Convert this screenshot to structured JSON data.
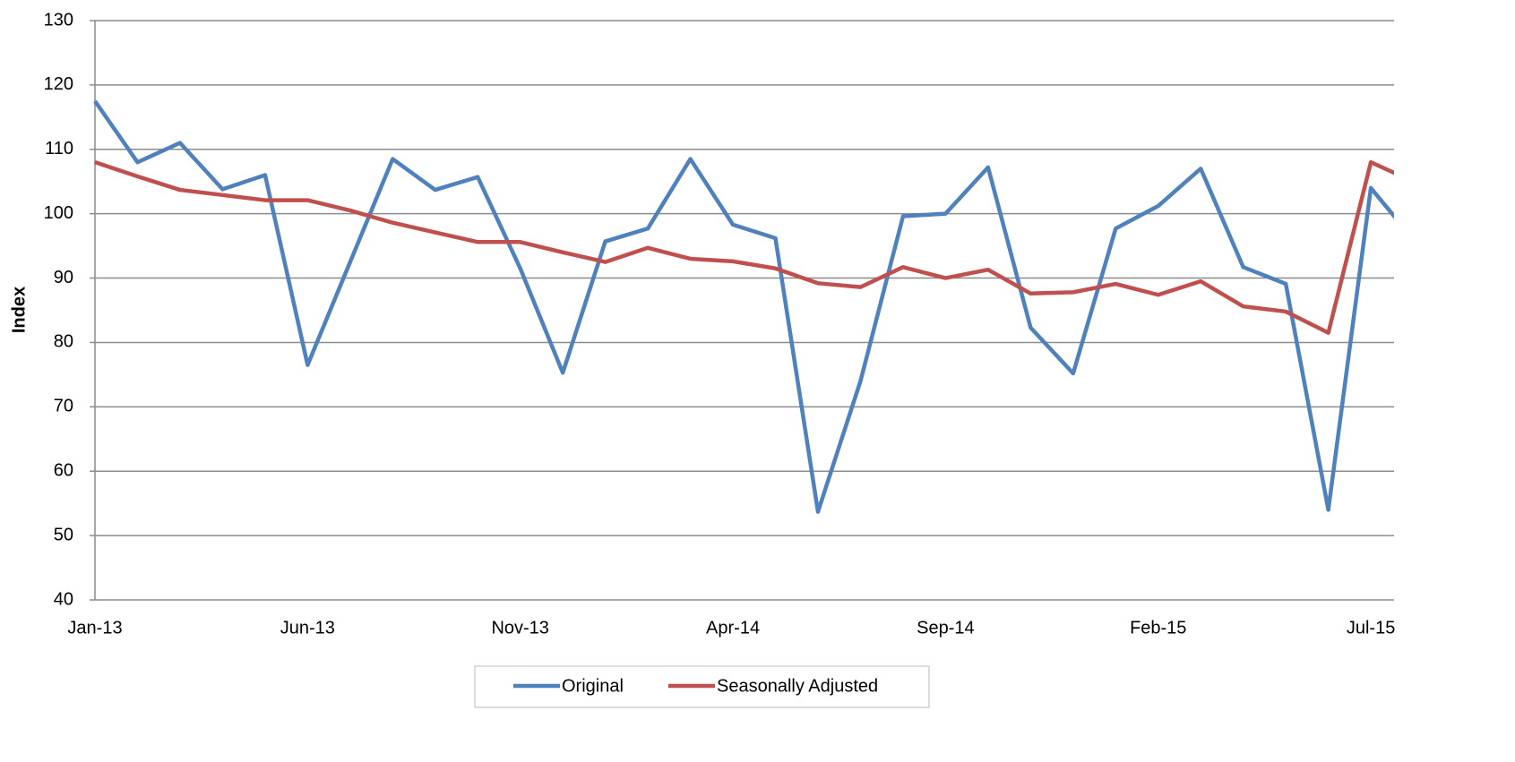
{
  "chart_data": {
    "type": "line",
    "ylabel": "Index",
    "categories": [
      "Jan-13",
      null,
      null,
      null,
      null,
      "Jun-13",
      null,
      null,
      null,
      null,
      "Nov-13",
      null,
      null,
      null,
      null,
      "Apr-14",
      null,
      null,
      null,
      null,
      "Sep-14",
      null,
      null,
      null,
      null,
      "Feb-15",
      null,
      null,
      null,
      null,
      "Jul-15",
      null
    ],
    "series": [
      {
        "name": "Original",
        "color": "#4f81bd",
        "values": [
          117.5,
          108,
          111,
          103.8,
          106,
          76.5,
          92.5,
          108.5,
          103.7,
          105.7,
          91.5,
          75.3,
          95.7,
          97.7,
          108.5,
          98.3,
          96.2,
          53.7,
          74,
          99.6,
          100,
          107.2,
          82.3,
          75.2,
          97.7,
          101.2,
          107,
          91.7,
          89.1,
          54,
          104,
          96
        ]
      },
      {
        "name": "Seasonally Adjusted",
        "color": "#c0504d",
        "values": [
          108,
          105.8,
          103.7,
          102.9,
          102.1,
          102.1,
          100.5,
          98.6,
          97.1,
          95.6,
          95.6,
          94,
          92.5,
          94.7,
          93,
          92.6,
          91.5,
          89.2,
          88.6,
          91.7,
          90,
          91.3,
          87.6,
          87.8,
          89.1,
          87.4,
          89.5,
          85.6,
          84.8,
          81.5,
          108,
          105
        ]
      }
    ],
    "ylim": [
      40,
      130
    ],
    "yticks": [
      40,
      50,
      60,
      70,
      80,
      90,
      100,
      110,
      120,
      130
    ],
    "grid": true,
    "legend": "bottom"
  }
}
